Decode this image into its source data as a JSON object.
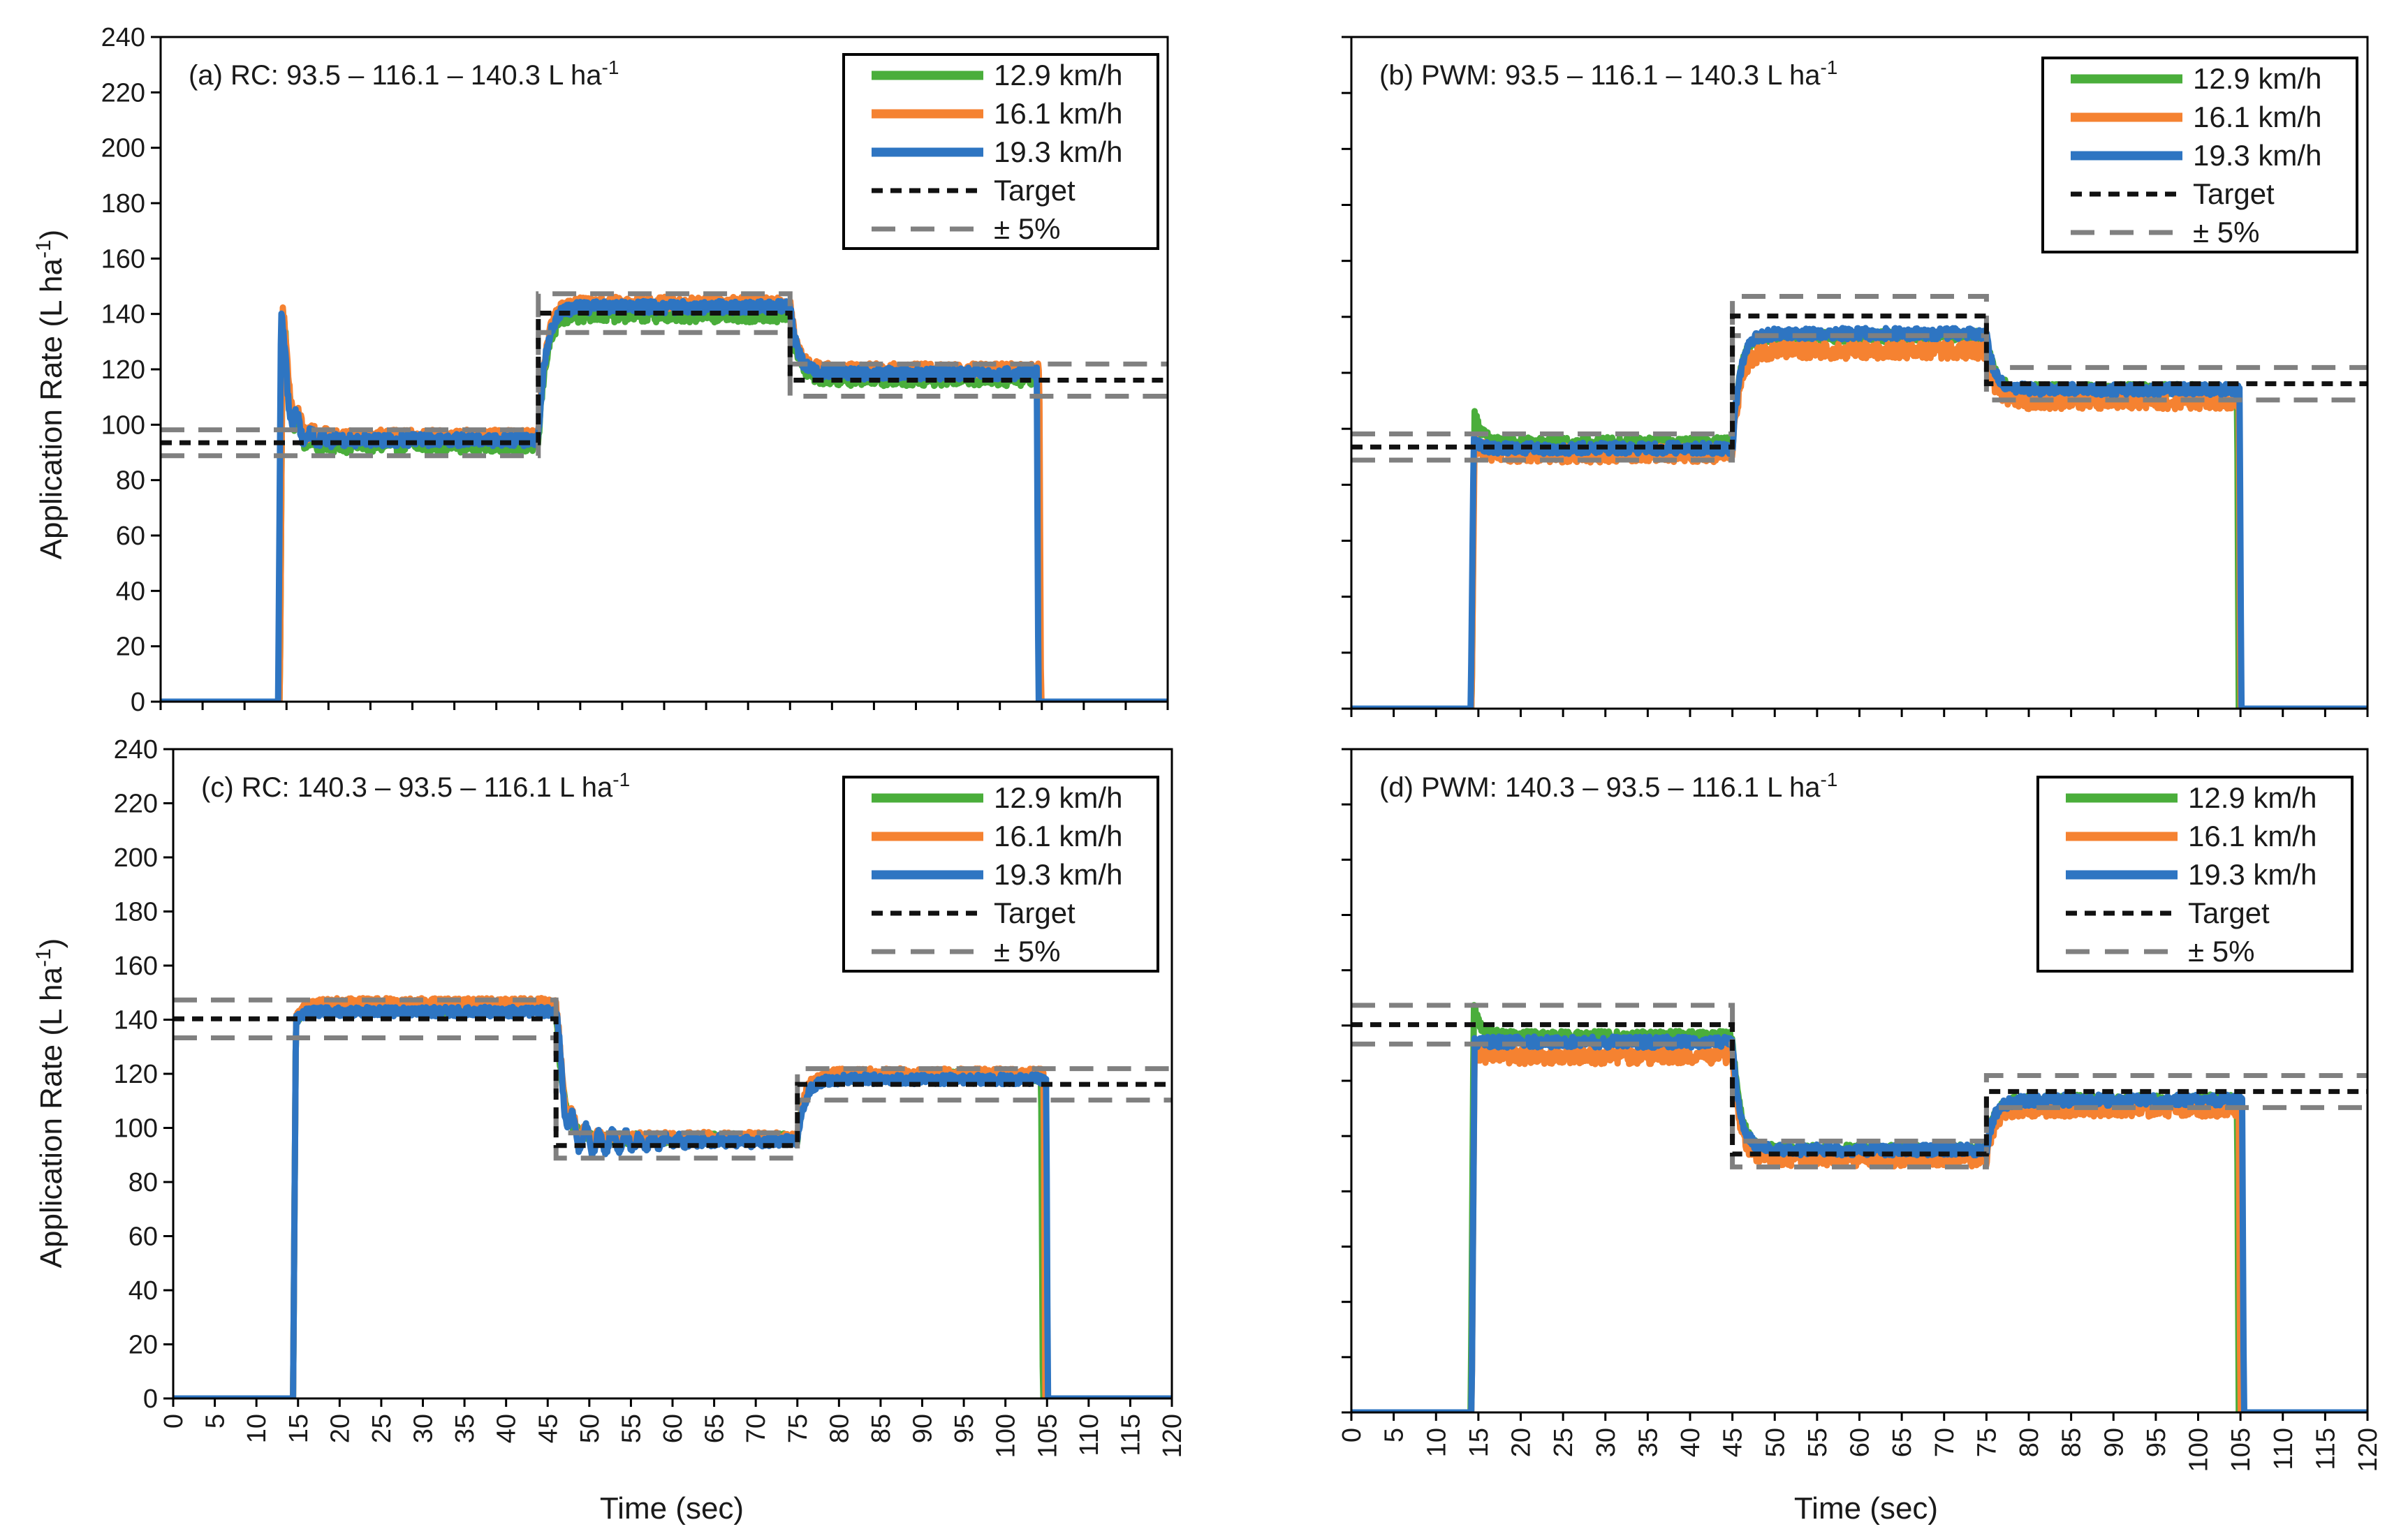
{
  "figure": {
    "ylabel_main": "Application Rate",
    "ylabel_unit": "(L ha",
    "ylabel_sup": "-1",
    "ylabel_close": ")",
    "xlabel": "Time  (sec)"
  },
  "chart_data": [
    {
      "type": "line",
      "id": "a",
      "title": "(a) RC: 93.5 – 116.1 – 140.3 L ha",
      "title_sup": "-1",
      "xlim": [
        0,
        120
      ],
      "ylim": [
        0,
        240
      ],
      "x_ticks": [
        0,
        5,
        10,
        15,
        20,
        25,
        30,
        35,
        40,
        45,
        50,
        55,
        60,
        65,
        70,
        75,
        80,
        85,
        90,
        95,
        100,
        105,
        110,
        115,
        120
      ],
      "y_ticks": [
        0,
        20,
        40,
        60,
        80,
        100,
        120,
        140,
        160,
        180,
        200,
        220,
        240
      ],
      "show_x_labels": false,
      "show_y_labels": true,
      "target": [
        [
          0,
          93.5
        ],
        [
          45,
          93.5
        ],
        [
          45,
          140.3
        ],
        [
          75,
          140.3
        ],
        [
          75,
          116.1
        ],
        [
          120,
          116.1
        ]
      ],
      "segments": [
        [
          0,
          45,
          93.5
        ],
        [
          45,
          75,
          140.3
        ],
        [
          75,
          120,
          116.1
        ]
      ],
      "series": [
        {
          "name": "12.9 km/h",
          "color": "#4aae3b",
          "start": 14.5,
          "stop": 104.5,
          "levels": [
            93.0,
            140.0,
            117.0
          ],
          "noise": 3.0,
          "spike": 142,
          "osc": 8,
          "osc_decay": 2.2
        },
        {
          "name": "16.1 km/h",
          "color": "#f58231",
          "start": 14.5,
          "stop": 104.7,
          "levels": [
            96.0,
            144.0,
            120.0
          ],
          "noise": 2.2,
          "spike": 143,
          "osc": 6,
          "osc_decay": 2.2
        },
        {
          "name": "19.3 km/h",
          "color": "#2e75c2",
          "start": 14.3,
          "stop": 104.4,
          "levels": [
            94.5,
            142.5,
            118.5
          ],
          "noise": 2.2,
          "spike": 141,
          "osc": 8,
          "osc_decay": 2.6
        }
      ]
    },
    {
      "type": "line",
      "id": "b",
      "title": "(b) PWM: 93.5 – 116.1 – 140.3 L ha",
      "title_sup": "-1",
      "xlim": [
        0,
        120
      ],
      "ylim": [
        0,
        240
      ],
      "x_ticks": [
        0,
        5,
        10,
        15,
        20,
        25,
        30,
        35,
        40,
        45,
        50,
        55,
        60,
        65,
        70,
        75,
        80,
        85,
        90,
        95,
        100,
        105,
        110,
        115,
        120
      ],
      "y_ticks": [
        0,
        20,
        40,
        60,
        80,
        100,
        120,
        140,
        160,
        180,
        200,
        220,
        240
      ],
      "show_x_labels": false,
      "show_y_labels": false,
      "target": [
        [
          0,
          93.5
        ],
        [
          45,
          93.5
        ],
        [
          45,
          140.3
        ],
        [
          75,
          140.3
        ],
        [
          75,
          116.1
        ],
        [
          120,
          116.1
        ]
      ],
      "segments": [
        [
          0,
          45,
          93.5
        ],
        [
          45,
          75,
          140.3
        ],
        [
          75,
          120,
          116.1
        ]
      ],
      "series": [
        {
          "name": "12.9 km/h",
          "color": "#4aae3b",
          "start": 14.5,
          "stop": 104.6,
          "levels": [
            95.0,
            133.0,
            114.0
          ],
          "noise": 2.0,
          "spike": 106,
          "osc": 0,
          "osc_decay": 1
        },
        {
          "name": "16.1 km/h",
          "color": "#f58231",
          "start": 14.5,
          "stop": 104.8,
          "levels": [
            91.0,
            128.0,
            110.0
          ],
          "noise": 3.0,
          "spike": 96,
          "osc": 0,
          "osc_decay": 1
        },
        {
          "name": "19.3 km/h",
          "color": "#2e75c2",
          "start": 14.4,
          "stop": 104.9,
          "levels": [
            93.0,
            134.0,
            114.0
          ],
          "noise": 2.0,
          "spike": 96,
          "osc": 0,
          "osc_decay": 1
        }
      ]
    },
    {
      "type": "line",
      "id": "c",
      "title": "(c) RC: 140.3 – 93.5 – 116.1 L ha",
      "title_sup": "-1",
      "xlim": [
        0,
        120
      ],
      "ylim": [
        0,
        240
      ],
      "x_ticks": [
        0,
        5,
        10,
        15,
        20,
        25,
        30,
        35,
        40,
        45,
        50,
        55,
        60,
        65,
        70,
        75,
        80,
        85,
        90,
        95,
        100,
        105,
        110,
        115,
        120
      ],
      "y_ticks": [
        0,
        20,
        40,
        60,
        80,
        100,
        120,
        140,
        160,
        180,
        200,
        220,
        240
      ],
      "show_x_labels": true,
      "show_y_labels": true,
      "target": [
        [
          0,
          140.3
        ],
        [
          46,
          140.3
        ],
        [
          46,
          93.5
        ],
        [
          75,
          93.5
        ],
        [
          75,
          116.1
        ],
        [
          120,
          116.1
        ]
      ],
      "segments": [
        [
          0,
          46,
          140.3
        ],
        [
          46,
          75,
          93.5
        ],
        [
          75,
          120,
          116.1
        ]
      ],
      "series": [
        {
          "name": "12.9 km/h",
          "color": "#4aae3b",
          "start": 14.7,
          "stop": 104.3,
          "levels": [
            144.0,
            96.0,
            119.0
          ],
          "noise": 2.0,
          "spike": 140,
          "osc": 0,
          "osc_decay": 1
        },
        {
          "name": "16.1 km/h",
          "color": "#f58231",
          "start": 14.7,
          "stop": 104.6,
          "levels": [
            146.0,
            96.5,
            120.0
          ],
          "noise": 2.0,
          "spike": 140,
          "osc": 5,
          "osc_decay": 4
        },
        {
          "name": "19.3 km/h",
          "color": "#2e75c2",
          "start": 14.7,
          "stop": 104.9,
          "levels": [
            143.0,
            95.0,
            118.0
          ],
          "noise": 1.8,
          "spike": 140,
          "osc": 7,
          "osc_decay": 8
        }
      ]
    },
    {
      "type": "line",
      "id": "d",
      "title": "(d) PWM: 140.3 – 93.5 – 116.1 L ha",
      "title_sup": "-1",
      "xlim": [
        0,
        120
      ],
      "ylim": [
        0,
        240
      ],
      "x_ticks": [
        0,
        5,
        10,
        15,
        20,
        25,
        30,
        35,
        40,
        45,
        50,
        55,
        60,
        65,
        70,
        75,
        80,
        85,
        90,
        95,
        100,
        105,
        110,
        115,
        120
      ],
      "y_ticks": [
        0,
        20,
        40,
        60,
        80,
        100,
        120,
        140,
        160,
        180,
        200,
        220,
        240
      ],
      "show_x_labels": true,
      "show_y_labels": false,
      "target": [
        [
          0,
          140.3
        ],
        [
          45,
          140.3
        ],
        [
          45,
          93.5
        ],
        [
          75,
          93.5
        ],
        [
          75,
          116.1
        ],
        [
          120,
          116.1
        ]
      ],
      "segments": [
        [
          0,
          45,
          140.3
        ],
        [
          45,
          75,
          93.5
        ],
        [
          75,
          120,
          116.1
        ]
      ],
      "series": [
        {
          "name": "12.9 km/h",
          "color": "#4aae3b",
          "start": 14.4,
          "stop": 104.6,
          "levels": [
            136.0,
            95.0,
            113.0
          ],
          "noise": 2.0,
          "spike": 147,
          "osc": 0,
          "osc_decay": 1
        },
        {
          "name": "16.1 km/h",
          "color": "#f58231",
          "start": 14.5,
          "stop": 104.8,
          "levels": [
            129.0,
            92.0,
            110.0
          ],
          "noise": 3.0,
          "spike": 131,
          "osc": 0,
          "osc_decay": 1
        },
        {
          "name": "19.3 km/h",
          "color": "#2e75c2",
          "start": 14.5,
          "stop": 105.2,
          "levels": [
            134.0,
            95.0,
            113.0
          ],
          "noise": 2.0,
          "spike": 134,
          "osc": 0,
          "osc_decay": 1
        }
      ]
    }
  ],
  "legend": [
    {
      "label": "12.9 km/h",
      "color": "#4aae3b",
      "style": "solid"
    },
    {
      "label": "16.1 km/h",
      "color": "#f58231",
      "style": "solid"
    },
    {
      "label": "19.3 km/h",
      "color": "#2e75c2",
      "style": "solid"
    },
    {
      "label": "Target",
      "color": "#111111",
      "style": "dash"
    },
    {
      "label": "± 5%",
      "color": "#808080",
      "style": "dash-long"
    }
  ],
  "colors": {
    "target": "#111111",
    "band": "#808080",
    "axis": "#000000"
  }
}
